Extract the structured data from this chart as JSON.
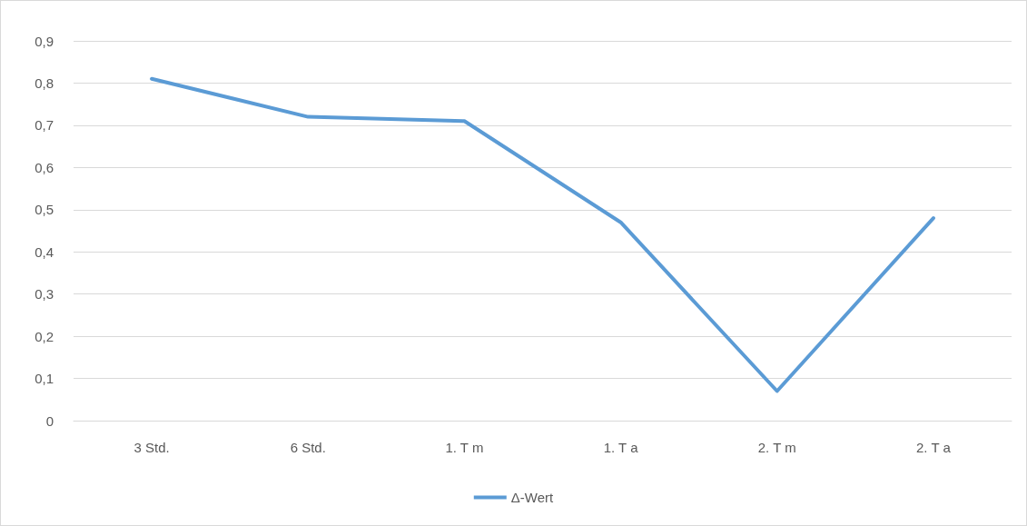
{
  "chart_data": {
    "type": "line",
    "categories": [
      "3 Std.",
      "6 Std.",
      "1. T m",
      "1. T a",
      "2. T m",
      "2. T a"
    ],
    "series": [
      {
        "name": "Δ-Wert",
        "color": "#5b9bd5",
        "values": [
          0.81,
          0.72,
          0.71,
          0.47,
          0.07,
          0.48
        ]
      }
    ],
    "ylim": [
      0,
      0.9
    ],
    "yticks": [
      0,
      {
        "value": 0.1,
        "label": "0,1"
      },
      {
        "value": 0.2,
        "label": "0,2"
      },
      {
        "value": 0.3,
        "label": "0,3"
      },
      {
        "value": 0.4,
        "label": "0,4"
      },
      {
        "value": 0.5,
        "label": "0,5"
      },
      {
        "value": 0.6,
        "label": "0,6"
      },
      {
        "value": 0.7,
        "label": "0,7"
      },
      {
        "value": 0.8,
        "label": "0,8"
      },
      {
        "value": 0.9,
        "label": "0,9"
      }
    ],
    "grid": "y",
    "legend": "bottom",
    "marker": "none",
    "line_style": "solid"
  }
}
